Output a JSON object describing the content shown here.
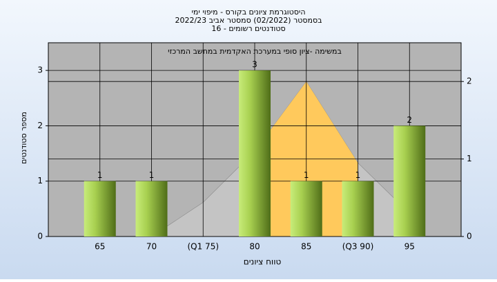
{
  "chart_data": {
    "type": "bar",
    "title": "היסטוגרמת ציונים בקורס - מיפוי ימי",
    "subtitle": "בסמסטר  (02/2022)  סמסטר אביב 2022/23",
    "subtitle2": "סטודנטים רשומים - 16",
    "annotation": "במשימה -ציון סופי במערכת האקדמית במחשב המרכזי",
    "x_label": "טווח ציונים",
    "y_label": "מספר סטודנטים",
    "categories": [
      "65",
      "70",
      "(Q1 75)",
      "80",
      "85",
      "(Q3 90)",
      "95"
    ],
    "values": [
      1,
      1,
      0,
      3,
      1,
      1,
      2
    ],
    "color": "#8fb83a",
    "ylim": [
      0,
      3.5
    ],
    "yticks": [
      0,
      1,
      2,
      3
    ],
    "area": {
      "values": [
        null,
        0,
        0.44,
        1.1,
        2.0,
        0.95,
        0.3
      ],
      "color": "#c4c4c4",
      "highlight_color": "#ffc95c",
      "highlight_from": 3,
      "highlight_to": 5,
      "axis": "y2"
    },
    "y2lim": [
      0,
      2.5
    ],
    "y2ticks": [
      0,
      1,
      2
    ],
    "grid": true
  }
}
